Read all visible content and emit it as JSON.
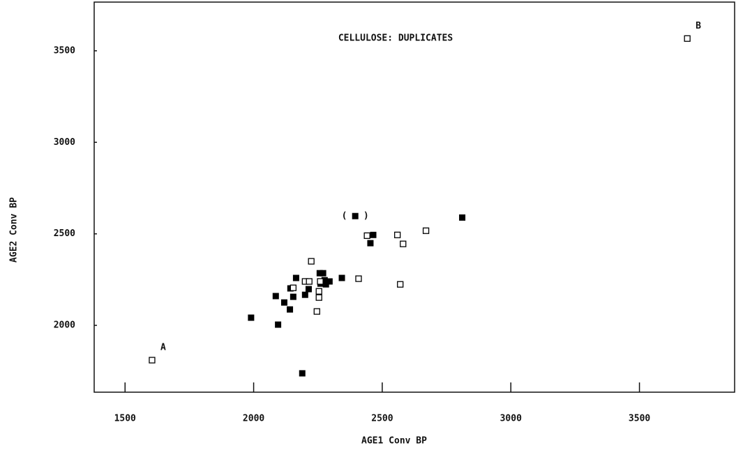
{
  "chart_data": {
    "type": "scatter",
    "title": "CELLULOSE: DUPLICATES",
    "xlabel": "AGE1 Conv BP",
    "ylabel": "AGE2 Conv BP",
    "xlim": [
      1380,
      3870
    ],
    "ylim": [
      1635,
      3766
    ],
    "xticks": [
      1500,
      2000,
      2500,
      3000,
      3500
    ],
    "yticks": [
      2000,
      2500,
      3000,
      3500
    ],
    "series": [
      {
        "color": "#000000",
        "marker": "filled",
        "x": [
          1990,
          2095,
          2086,
          2119,
          2143,
          2141,
          2154,
          2165,
          2200,
          2214,
          2189,
          2257,
          2270,
          2260,
          2276,
          2281,
          2295,
          2343,
          2395,
          2454,
          2465,
          2811
        ],
        "y": [
          2042,
          2004,
          2160,
          2125,
          2202,
          2087,
          2156,
          2259,
          2167,
          2198,
          1738,
          2285,
          2285,
          2228,
          2247,
          2224,
          2240,
          2259,
          2597,
          2449,
          2494,
          2589
        ]
      },
      {
        "color": "#000000",
        "marker": "open",
        "x": [
          1605,
          3686,
          2224,
          2200,
          2216,
          2154,
          2254,
          2254,
          2246,
          2259,
          2408,
          2441,
          2559,
          2581,
          2670,
          2570
        ],
        "y": [
          1810,
          3567,
          2350,
          2240,
          2240,
          2205,
          2186,
          2152,
          2076,
          2240,
          2255,
          2490,
          2494,
          2445,
          2517,
          2224
        ]
      }
    ],
    "annotations": [
      {
        "text": "A",
        "x": 1605,
        "y": 1810
      },
      {
        "text": "B",
        "x": 3686,
        "y": 3567
      },
      {
        "text": "(   )",
        "x": 2395,
        "y": 2597
      }
    ]
  }
}
